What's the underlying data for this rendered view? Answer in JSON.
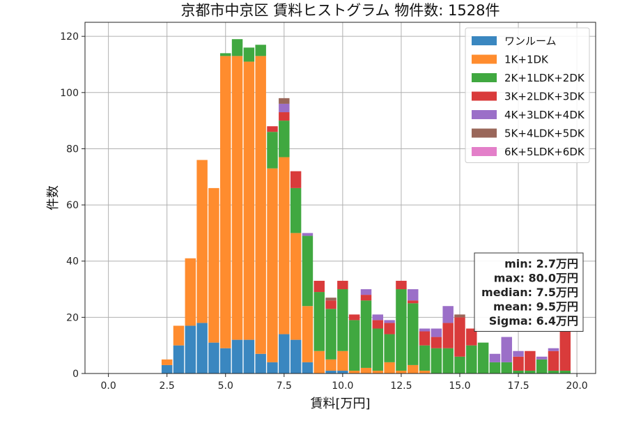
{
  "chart_data": {
    "type": "bar",
    "stacked": true,
    "title": "京都市中京区 賃料ヒストグラム  物件数: 1528件",
    "xlabel": "賃料[万円]",
    "ylabel": "件数",
    "xlim": [
      -1.0,
      20.8
    ],
    "ylim": [
      0,
      125
    ],
    "xticks": [
      "0.0",
      "2.5",
      "5.0",
      "7.5",
      "10.0",
      "12.5",
      "15.0",
      "17.5",
      "20.0"
    ],
    "yticks": [
      "0",
      "20",
      "40",
      "60",
      "80",
      "100",
      "120"
    ],
    "grid": true,
    "legend_position": "top-right",
    "bin_width": 0.5,
    "x": [
      2.5,
      3.0,
      3.5,
      4.0,
      4.5,
      5.0,
      5.5,
      6.0,
      6.5,
      7.0,
      7.5,
      8.0,
      8.5,
      9.0,
      9.5,
      10.0,
      10.5,
      11.0,
      11.5,
      12.0,
      12.5,
      13.0,
      13.5,
      14.0,
      14.5,
      15.0,
      15.5,
      16.0,
      16.5,
      17.0,
      17.5,
      18.0,
      18.5,
      19.0,
      19.5
    ],
    "series": [
      {
        "name": "ワンルーム",
        "color": "#3a87c0",
        "values": [
          3,
          10,
          17,
          18,
          11,
          9,
          12,
          12,
          7,
          4,
          14,
          12,
          4,
          0,
          1,
          1,
          0,
          0,
          0,
          0,
          0,
          0,
          0,
          0,
          0,
          0,
          0,
          0,
          0,
          0,
          0,
          0,
          0,
          0,
          0
        ]
      },
      {
        "name": "1K+1DK",
        "color": "#ff8c2e",
        "values": [
          2,
          7,
          24,
          58,
          55,
          104,
          101,
          99,
          106,
          69,
          63,
          38,
          20,
          8,
          4,
          7,
          1,
          2,
          1,
          4,
          1,
          3,
          1,
          0,
          0,
          0,
          0,
          0,
          0,
          0,
          0,
          0,
          0,
          0,
          0
        ]
      },
      {
        "name": "2K+1LDK+2DK",
        "color": "#40a840",
        "values": [
          0,
          0,
          0,
          0,
          0,
          1,
          6,
          5,
          4,
          13,
          13,
          16,
          25,
          21,
          18,
          22,
          18,
          24,
          15,
          10,
          29,
          22,
          9,
          9,
          9,
          6,
          10,
          11,
          4,
          4,
          1,
          1,
          5,
          1,
          1
        ]
      },
      {
        "name": "3K+2LDK+3DK",
        "color": "#d93b3b",
        "values": [
          0,
          0,
          0,
          0,
          0,
          0,
          0,
          0,
          0,
          2,
          3,
          6,
          0,
          4,
          3,
          3,
          2,
          2,
          3,
          4,
          3,
          1,
          5,
          4,
          9,
          14,
          6,
          0,
          0,
          0,
          5,
          7,
          0,
          7,
          14
        ]
      },
      {
        "name": "4K+3LDK+4DK",
        "color": "#9b6fc8",
        "values": [
          0,
          0,
          0,
          0,
          0,
          0,
          0,
          0,
          0,
          0,
          3,
          0,
          1,
          0,
          0,
          0,
          0,
          2,
          2,
          1,
          0,
          4,
          1,
          3,
          6,
          0,
          0,
          0,
          3,
          9,
          2,
          0,
          1,
          1,
          0
        ]
      },
      {
        "name": "5K+4LDK+5DK",
        "color": "#9a675a",
        "values": [
          0,
          0,
          0,
          0,
          0,
          0,
          0,
          0,
          0,
          0,
          2,
          0,
          0,
          0,
          1,
          0,
          0,
          0,
          0,
          0,
          0,
          0,
          0,
          0,
          0,
          1,
          0,
          0,
          0,
          0,
          0,
          0,
          0,
          0,
          0
        ]
      },
      {
        "name": "6K+5LDK+6DK",
        "color": "#e37fc9",
        "values": [
          0,
          0,
          0,
          0,
          0,
          0,
          0,
          0,
          0,
          0,
          0,
          0,
          0,
          0,
          0,
          0,
          0,
          0,
          0,
          0,
          0,
          0,
          0,
          0,
          0,
          0,
          0,
          0,
          0,
          0,
          0,
          0,
          0,
          0,
          0
        ]
      }
    ],
    "stats": [
      "min: 2.7万円",
      "max: 80.0万円",
      "median: 7.5万円",
      "mean: 9.5万円",
      "Sigma: 6.4万円"
    ]
  }
}
